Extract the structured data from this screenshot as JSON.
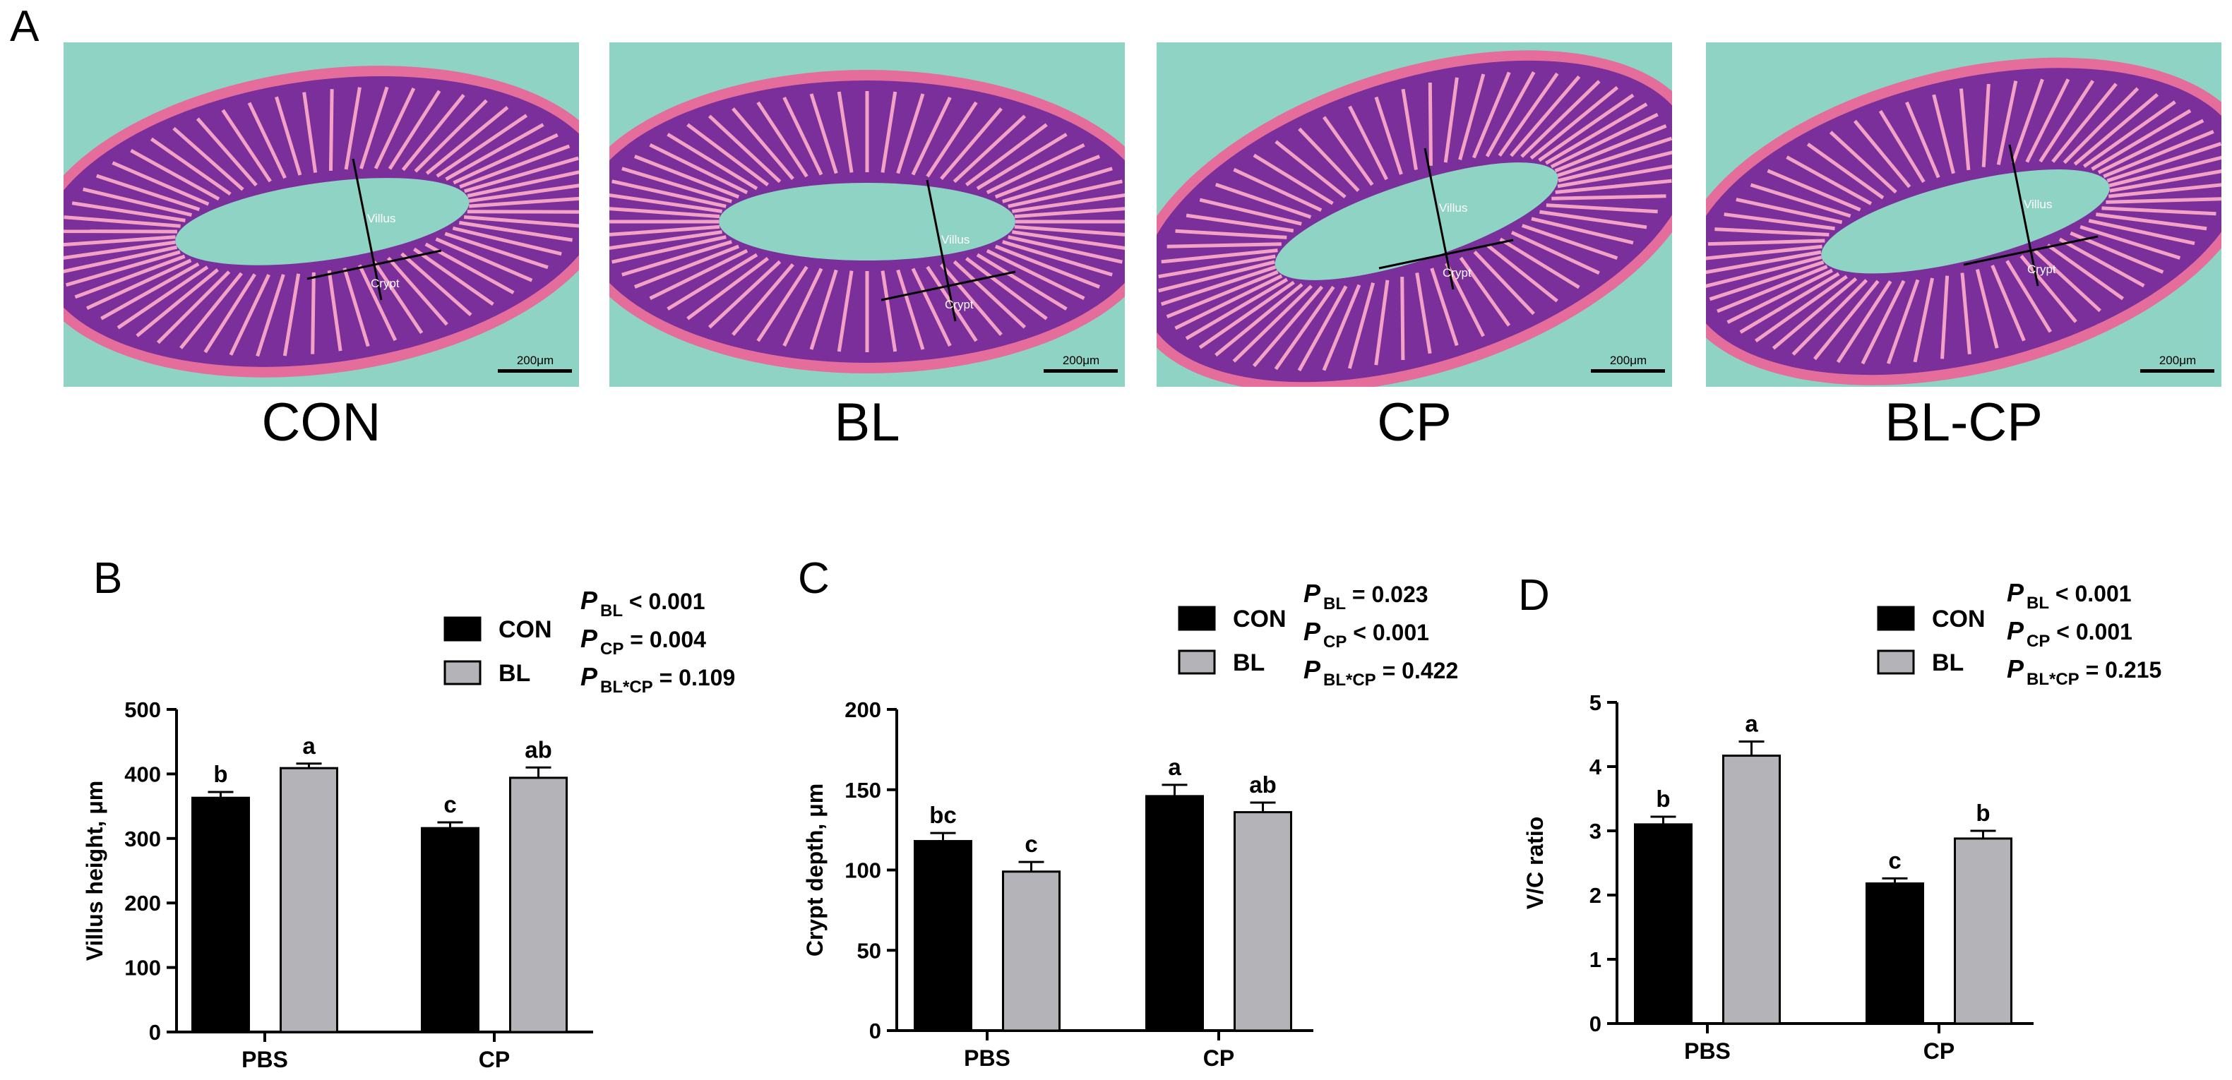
{
  "panel_letters": {
    "a": "A",
    "b": "B",
    "c": "C",
    "d": "D"
  },
  "micrographs": [
    {
      "label": "CON",
      "villus_label": "Villus",
      "crypt_label": "Crypt",
      "scale_label": "200μm"
    },
    {
      "label": "BL",
      "villus_label": "Villus",
      "crypt_label": "Crypt",
      "scale_label": "200μm"
    },
    {
      "label": "CP",
      "villus_label": "Villus",
      "crypt_label": "Crypt",
      "scale_label": "200μm"
    },
    {
      "label": "BL-CP",
      "villus_label": "Villus",
      "crypt_label": "Crypt",
      "scale_label": "200μm"
    }
  ],
  "colors": {
    "con": "#000000",
    "bl": "#b4b4b8",
    "micro_bg": "#8fd3c4",
    "tissue": "#7a2f9a",
    "lumen_edge": "#e46d9c"
  },
  "chart_data": [
    {
      "type": "bar",
      "panel": "B",
      "categories": [
        "PBS",
        "CP"
      ],
      "ylabel": "Villus height, μm",
      "ylim": [
        0,
        500
      ],
      "yticks": [
        "0",
        "100",
        "200",
        "300",
        "400",
        "500"
      ],
      "series": [
        {
          "name": "CON",
          "values": [
            363,
            316
          ],
          "errors": [
            9,
            9
          ],
          "letters": [
            "b",
            "c"
          ]
        },
        {
          "name": "BL",
          "values": [
            409,
            394
          ],
          "errors": [
            7,
            16
          ],
          "letters": [
            "a",
            "ab"
          ]
        }
      ],
      "pvalues": [
        {
          "p": "P",
          "sub": "BL",
          "text": " < 0.001"
        },
        {
          "p": "P",
          "sub": "CP",
          "text": " = 0.004"
        },
        {
          "p": "P",
          "sub": "BL*CP",
          "text": " = 0.109"
        }
      ]
    },
    {
      "type": "bar",
      "panel": "C",
      "categories": [
        "PBS",
        "CP"
      ],
      "ylabel": "Crypt depth, μm",
      "ylim": [
        0,
        200
      ],
      "yticks": [
        "0",
        "50",
        "100",
        "150",
        "200"
      ],
      "series": [
        {
          "name": "CON",
          "values": [
            118,
            146
          ],
          "errors": [
            5,
            7
          ],
          "letters": [
            "bc",
            "a"
          ]
        },
        {
          "name": "BL",
          "values": [
            99,
            136
          ],
          "errors": [
            6,
            6
          ],
          "letters": [
            "c",
            "ab"
          ]
        }
      ],
      "pvalues": [
        {
          "p": "P",
          "sub": "BL",
          "text": " = 0.023"
        },
        {
          "p": "P",
          "sub": "CP",
          "text": " < 0.001"
        },
        {
          "p": "P",
          "sub": "BL*CP",
          "text": " = 0.422"
        }
      ]
    },
    {
      "type": "bar",
      "panel": "D",
      "categories": [
        "PBS",
        "CP"
      ],
      "ylabel": "V/C ratio",
      "ylim": [
        0,
        5
      ],
      "yticks": [
        "0",
        "1",
        "2",
        "3",
        "4",
        "5"
      ],
      "series": [
        {
          "name": "CON",
          "values": [
            3.1,
            2.18
          ],
          "errors": [
            0.12,
            0.08
          ],
          "letters": [
            "b",
            "c"
          ]
        },
        {
          "name": "BL",
          "values": [
            4.17,
            2.88
          ],
          "errors": [
            0.22,
            0.12
          ],
          "letters": [
            "a",
            "b"
          ]
        }
      ],
      "pvalues": [
        {
          "p": "P",
          "sub": "BL",
          "text": " < 0.001"
        },
        {
          "p": "P",
          "sub": "CP",
          "text": " < 0.001"
        },
        {
          "p": "P",
          "sub": "BL*CP",
          "text": " = 0.215"
        }
      ]
    }
  ]
}
